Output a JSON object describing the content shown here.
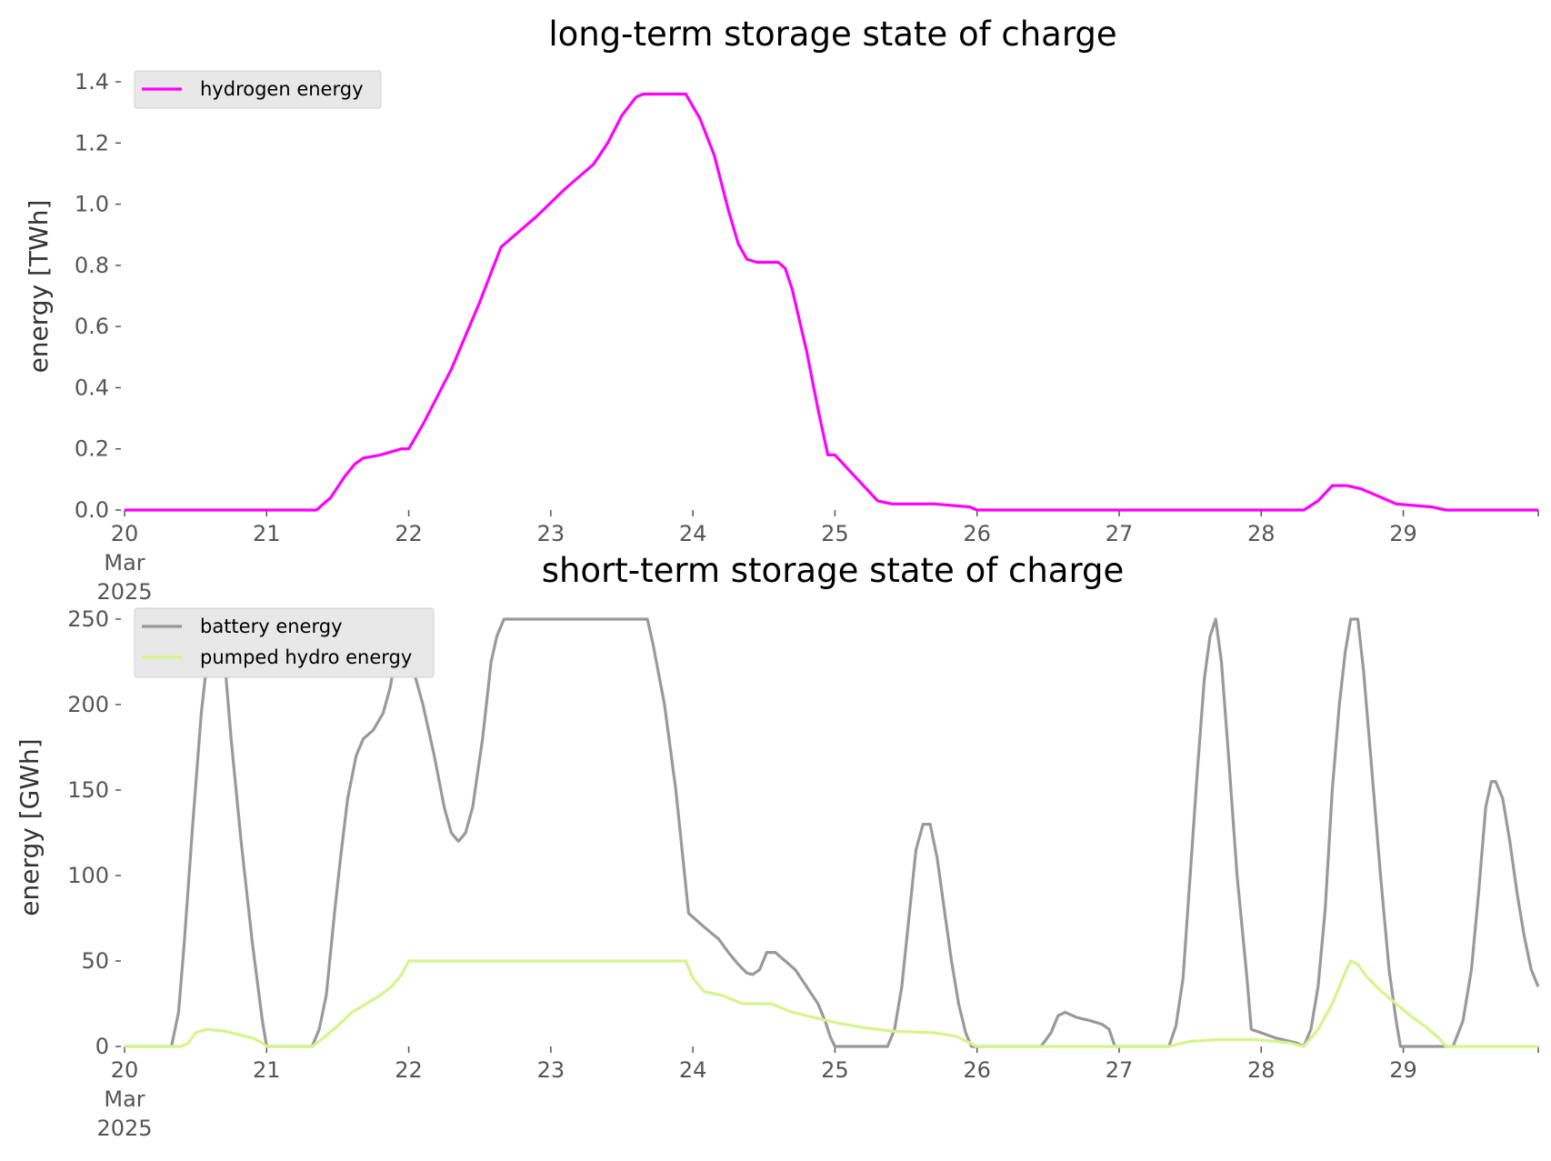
{
  "chart_data": [
    {
      "type": "line",
      "title": "long-term storage state of charge",
      "xlabel": "",
      "ylabel": "energy [TWh]",
      "x_tick_labels": [
        "20\nMar\n2025",
        "21",
        "22",
        "23",
        "24",
        "25",
        "26",
        "27",
        "28",
        "29"
      ],
      "x_ticks": [
        20,
        21,
        22,
        23,
        24,
        25,
        26,
        27,
        28,
        29
      ],
      "xlim": [
        20,
        29.95
      ],
      "ylim": [
        0,
        1.4
      ],
      "y_ticks": [
        0.0,
        0.2,
        0.4,
        0.6,
        0.8,
        1.0,
        1.2,
        1.4
      ],
      "y_tick_labels": [
        "0.0",
        "0.2",
        "0.4",
        "0.6",
        "0.8",
        "1.0",
        "1.2",
        "1.4"
      ],
      "grid": false,
      "legend": "upper-left",
      "series": [
        {
          "name": "hydrogen energy",
          "color": "#ff00ff",
          "points": [
            [
              20.0,
              0
            ],
            [
              21.35,
              0
            ],
            [
              21.45,
              0.04
            ],
            [
              21.55,
              0.11
            ],
            [
              21.62,
              0.15
            ],
            [
              21.68,
              0.17
            ],
            [
              21.8,
              0.18
            ],
            [
              21.95,
              0.2
            ],
            [
              22.0,
              0.2
            ],
            [
              22.1,
              0.28
            ],
            [
              22.3,
              0.46
            ],
            [
              22.5,
              0.68
            ],
            [
              22.65,
              0.86
            ],
            [
              22.75,
              0.9
            ],
            [
              22.9,
              0.96
            ],
            [
              23.1,
              1.05
            ],
            [
              23.3,
              1.13
            ],
            [
              23.4,
              1.2
            ],
            [
              23.5,
              1.29
            ],
            [
              23.6,
              1.35
            ],
            [
              23.65,
              1.36
            ],
            [
              23.95,
              1.36
            ],
            [
              24.05,
              1.28
            ],
            [
              24.15,
              1.16
            ],
            [
              24.25,
              0.98
            ],
            [
              24.32,
              0.87
            ],
            [
              24.38,
              0.82
            ],
            [
              24.45,
              0.81
            ],
            [
              24.6,
              0.81
            ],
            [
              24.65,
              0.79
            ],
            [
              24.7,
              0.72
            ],
            [
              24.8,
              0.52
            ],
            [
              24.88,
              0.33
            ],
            [
              24.95,
              0.18
            ],
            [
              25.0,
              0.18
            ],
            [
              25.1,
              0.13
            ],
            [
              25.2,
              0.08
            ],
            [
              25.3,
              0.03
            ],
            [
              25.4,
              0.02
            ],
            [
              25.7,
              0.02
            ],
            [
              25.95,
              0.01
            ],
            [
              26.0,
              0
            ],
            [
              28.3,
              0
            ],
            [
              28.4,
              0.03
            ],
            [
              28.5,
              0.08
            ],
            [
              28.6,
              0.08
            ],
            [
              28.7,
              0.07
            ],
            [
              28.85,
              0.04
            ],
            [
              28.95,
              0.02
            ],
            [
              29.2,
              0.01
            ],
            [
              29.3,
              0
            ],
            [
              29.95,
              0
            ]
          ]
        }
      ]
    },
    {
      "type": "line",
      "title": "short-term storage state of charge",
      "xlabel": "",
      "ylabel": "energy [GWh]",
      "x_tick_labels": [
        "20\nMar\n2025",
        "21",
        "22",
        "23",
        "24",
        "25",
        "26",
        "27",
        "28",
        "29"
      ],
      "x_ticks": [
        20,
        21,
        22,
        23,
        24,
        25,
        26,
        27,
        28,
        29
      ],
      "xlim": [
        20,
        29.95
      ],
      "ylim": [
        0,
        250
      ],
      "y_ticks": [
        0,
        50,
        100,
        150,
        200,
        250
      ],
      "y_tick_labels": [
        "0",
        "50",
        "100",
        "150",
        "200",
        "250"
      ],
      "grid": false,
      "legend": "upper-left",
      "series": [
        {
          "name": "battery energy",
          "color": "#999999",
          "points": [
            [
              20.0,
              0
            ],
            [
              20.33,
              0
            ],
            [
              20.38,
              20
            ],
            [
              20.42,
              60
            ],
            [
              20.48,
              130
            ],
            [
              20.54,
              195
            ],
            [
              20.6,
              240
            ],
            [
              20.65,
              250
            ],
            [
              20.7,
              230
            ],
            [
              20.75,
              180
            ],
            [
              20.82,
              120
            ],
            [
              20.9,
              60
            ],
            [
              20.97,
              15
            ],
            [
              21.0,
              0
            ],
            [
              21.32,
              0
            ],
            [
              21.37,
              10
            ],
            [
              21.42,
              30
            ],
            [
              21.48,
              80
            ],
            [
              21.52,
              110
            ],
            [
              21.57,
              145
            ],
            [
              21.63,
              170
            ],
            [
              21.68,
              180
            ],
            [
              21.75,
              185
            ],
            [
              21.82,
              195
            ],
            [
              21.87,
              210
            ],
            [
              21.92,
              235
            ],
            [
              21.96,
              250
            ],
            [
              22.0,
              230
            ],
            [
              22.1,
              200
            ],
            [
              22.18,
              170
            ],
            [
              22.25,
              140
            ],
            [
              22.3,
              125
            ],
            [
              22.35,
              120
            ],
            [
              22.4,
              125
            ],
            [
              22.45,
              140
            ],
            [
              22.52,
              180
            ],
            [
              22.58,
              225
            ],
            [
              22.62,
              240
            ],
            [
              22.67,
              250
            ],
            [
              23.68,
              250
            ],
            [
              23.72,
              235
            ],
            [
              23.8,
              200
            ],
            [
              23.88,
              150
            ],
            [
              23.93,
              110
            ],
            [
              23.97,
              78
            ],
            [
              24.05,
              72
            ],
            [
              24.12,
              67
            ],
            [
              24.18,
              63
            ],
            [
              24.25,
              55
            ],
            [
              24.32,
              48
            ],
            [
              24.38,
              43
            ],
            [
              24.42,
              42
            ],
            [
              24.47,
              45
            ],
            [
              24.52,
              55
            ],
            [
              24.58,
              55
            ],
            [
              24.65,
              50
            ],
            [
              24.72,
              45
            ],
            [
              24.8,
              35
            ],
            [
              24.88,
              25
            ],
            [
              24.93,
              15
            ],
            [
              24.97,
              5
            ],
            [
              25.0,
              0
            ],
            [
              25.37,
              0
            ],
            [
              25.42,
              10
            ],
            [
              25.47,
              35
            ],
            [
              25.52,
              75
            ],
            [
              25.57,
              115
            ],
            [
              25.62,
              130
            ],
            [
              25.67,
              130
            ],
            [
              25.72,
              110
            ],
            [
              25.77,
              80
            ],
            [
              25.82,
              50
            ],
            [
              25.87,
              25
            ],
            [
              25.92,
              8
            ],
            [
              25.96,
              0
            ],
            [
              26.45,
              0
            ],
            [
              26.52,
              8
            ],
            [
              26.57,
              18
            ],
            [
              26.62,
              20
            ],
            [
              26.7,
              17
            ],
            [
              26.8,
              15
            ],
            [
              26.88,
              13
            ],
            [
              26.93,
              10
            ],
            [
              26.97,
              0
            ],
            [
              27.35,
              0
            ],
            [
              27.4,
              12
            ],
            [
              27.45,
              40
            ],
            [
              27.5,
              100
            ],
            [
              27.55,
              160
            ],
            [
              27.6,
              215
            ],
            [
              27.64,
              240
            ],
            [
              27.68,
              250
            ],
            [
              27.72,
              225
            ],
            [
              27.77,
              170
            ],
            [
              27.83,
              100
            ],
            [
              27.9,
              40
            ],
            [
              27.93,
              10
            ],
            [
              28.0,
              8
            ],
            [
              28.1,
              5
            ],
            [
              28.25,
              2
            ],
            [
              28.3,
              0
            ],
            [
              28.35,
              10
            ],
            [
              28.4,
              35
            ],
            [
              28.45,
              80
            ],
            [
              28.5,
              150
            ],
            [
              28.55,
              200
            ],
            [
              28.59,
              230
            ],
            [
              28.63,
              250
            ],
            [
              28.68,
              250
            ],
            [
              28.72,
              220
            ],
            [
              28.78,
              160
            ],
            [
              28.84,
              100
            ],
            [
              28.9,
              45
            ],
            [
              28.95,
              15
            ],
            [
              28.98,
              0
            ],
            [
              29.35,
              0
            ],
            [
              29.42,
              15
            ],
            [
              29.48,
              45
            ],
            [
              29.53,
              90
            ],
            [
              29.58,
              140
            ],
            [
              29.62,
              155
            ],
            [
              29.65,
              155
            ],
            [
              29.7,
              145
            ],
            [
              29.75,
              120
            ],
            [
              29.8,
              90
            ],
            [
              29.85,
              65
            ],
            [
              29.9,
              45
            ],
            [
              29.95,
              35
            ]
          ]
        },
        {
          "name": "pumped hydro energy",
          "color": "#d4f58c",
          "points": [
            [
              20.0,
              0
            ],
            [
              20.4,
              0
            ],
            [
              20.45,
              2
            ],
            [
              20.5,
              8
            ],
            [
              20.58,
              10
            ],
            [
              20.7,
              9
            ],
            [
              20.8,
              7
            ],
            [
              20.9,
              5
            ],
            [
              20.97,
              2
            ],
            [
              21.0,
              0
            ],
            [
              21.32,
              0
            ],
            [
              21.4,
              5
            ],
            [
              21.5,
              12
            ],
            [
              21.6,
              20
            ],
            [
              21.7,
              25
            ],
            [
              21.8,
              30
            ],
            [
              21.88,
              35
            ],
            [
              21.95,
              42
            ],
            [
              22.0,
              50
            ],
            [
              23.95,
              50
            ],
            [
              24.0,
              40
            ],
            [
              24.08,
              32
            ],
            [
              24.2,
              30
            ],
            [
              24.35,
              25
            ],
            [
              24.55,
              25
            ],
            [
              24.7,
              20
            ],
            [
              24.9,
              16
            ],
            [
              25.0,
              14
            ],
            [
              25.2,
              11
            ],
            [
              25.4,
              9
            ],
            [
              25.7,
              8
            ],
            [
              25.85,
              6
            ],
            [
              25.95,
              2
            ],
            [
              26.0,
              0
            ],
            [
              27.35,
              0
            ],
            [
              27.5,
              3
            ],
            [
              27.7,
              4
            ],
            [
              27.95,
              4
            ],
            [
              28.1,
              3
            ],
            [
              28.2,
              2
            ],
            [
              28.3,
              0
            ],
            [
              28.4,
              10
            ],
            [
              28.5,
              25
            ],
            [
              28.6,
              45
            ],
            [
              28.63,
              50
            ],
            [
              28.68,
              48
            ],
            [
              28.75,
              40
            ],
            [
              28.85,
              32
            ],
            [
              28.95,
              25
            ],
            [
              29.05,
              18
            ],
            [
              29.15,
              12
            ],
            [
              29.25,
              5
            ],
            [
              29.3,
              0
            ],
            [
              29.95,
              0
            ]
          ]
        }
      ]
    }
  ]
}
